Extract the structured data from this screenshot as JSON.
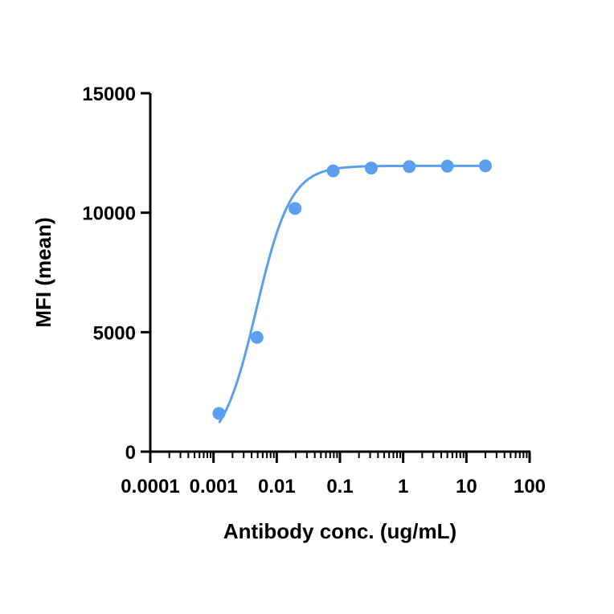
{
  "chart_data": {
    "type": "scatter",
    "title": "",
    "xlabel": "Antibody conc. (ug/mL)",
    "ylabel": "MFI (mean)",
    "x_scale": "log",
    "xlim": [
      0.0001,
      100
    ],
    "ylim": [
      0,
      15000
    ],
    "x_ticks": [
      "0.0001",
      "0.001",
      "0.01",
      "0.1",
      "1",
      "10",
      "100"
    ],
    "y_ticks": [
      "0",
      "5000",
      "10000",
      "15000"
    ],
    "grid": false,
    "legend": "none",
    "color": "#5aa0ee",
    "series": [
      {
        "x": [
          0.00122,
          0.00488,
          0.0195,
          0.0781,
          0.3125,
          1.25,
          5,
          20
        ],
        "y": [
          1600,
          4780,
          10180,
          11750,
          11870,
          11930,
          11950,
          11960
        ],
        "fit": "sigmoidal"
      }
    ]
  }
}
